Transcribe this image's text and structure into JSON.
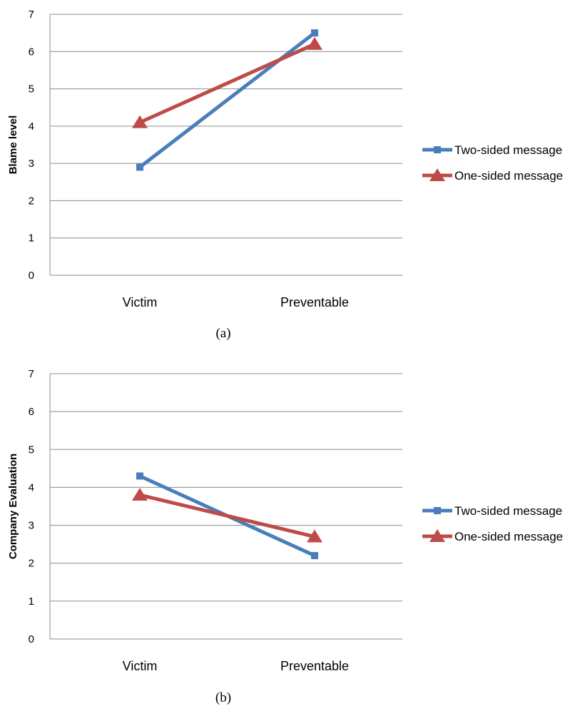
{
  "chart_data": [
    {
      "type": "line",
      "caption": "(a)",
      "title": "",
      "xlabel": "",
      "ylabel": "Blame level",
      "categories": [
        "Victim",
        "Preventable"
      ],
      "ylim": [
        0,
        7
      ],
      "yticks": [
        0,
        1,
        2,
        3,
        4,
        5,
        6,
        7
      ],
      "grid": true,
      "legend_position": "right",
      "series": [
        {
          "name": "Two-sided message",
          "values": [
            2.9,
            6.5
          ],
          "color": "#4a7ebb",
          "marker": "square"
        },
        {
          "name": "One-sided message",
          "values": [
            4.1,
            6.2
          ],
          "color": "#be4b48",
          "marker": "triangle"
        }
      ]
    },
    {
      "type": "line",
      "caption": "(b)",
      "title": "",
      "xlabel": "",
      "ylabel": "Company Evaluation",
      "categories": [
        "Victim",
        "Preventable"
      ],
      "ylim": [
        0,
        7
      ],
      "yticks": [
        0,
        1,
        2,
        3,
        4,
        5,
        6,
        7
      ],
      "grid": true,
      "legend_position": "right",
      "series": [
        {
          "name": "Two-sided message",
          "values": [
            4.3,
            2.2
          ],
          "color": "#4a7ebb",
          "marker": "square"
        },
        {
          "name": "One-sided message",
          "values": [
            3.8,
            2.7
          ],
          "color": "#be4b48",
          "marker": "triangle"
        }
      ]
    }
  ]
}
